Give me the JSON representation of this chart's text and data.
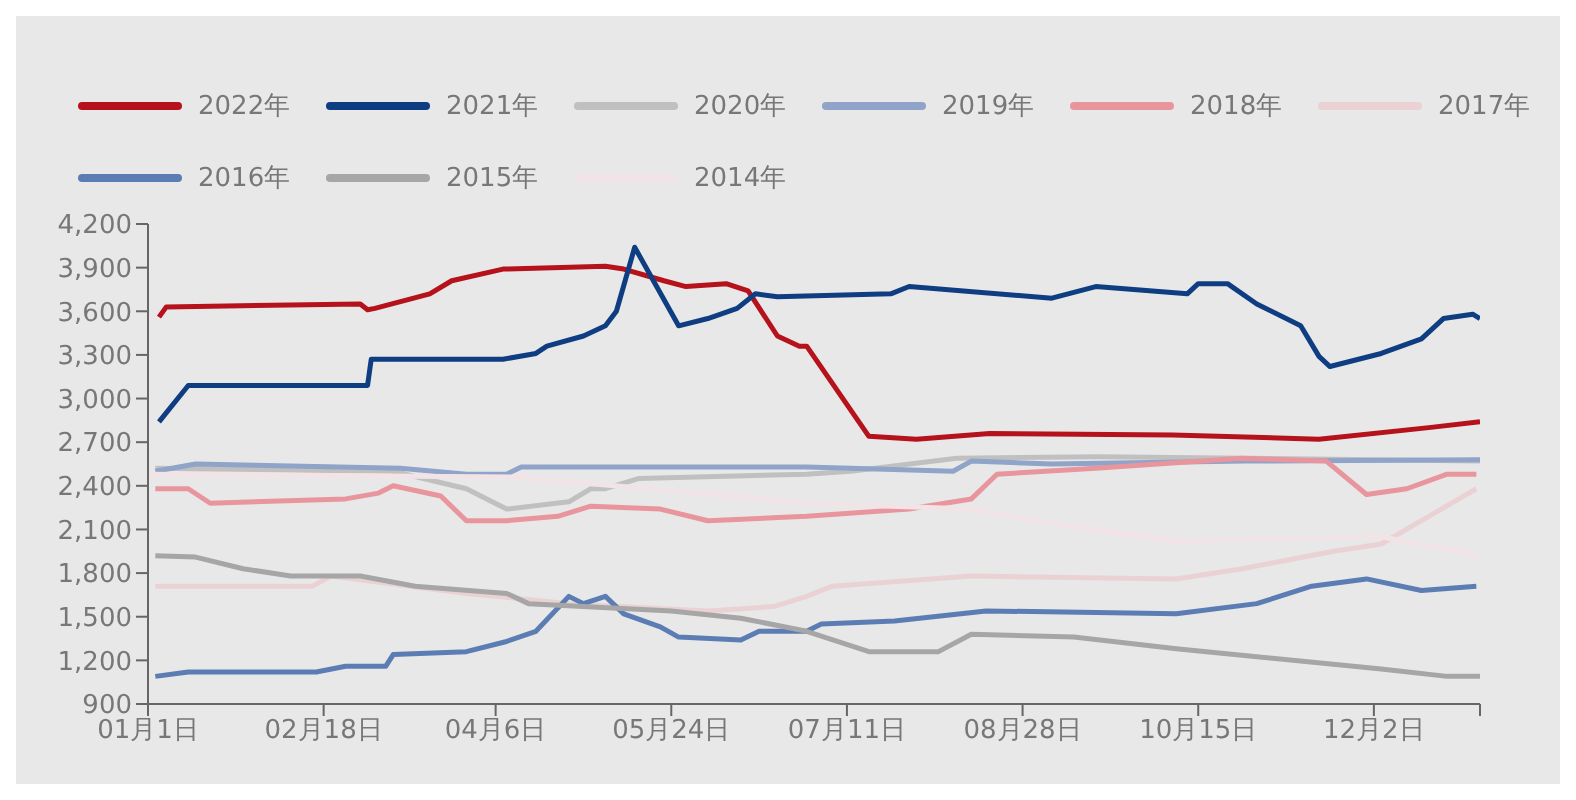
{
  "chart_data": {
    "type": "line",
    "legend": "top",
    "marker": "none",
    "line_style": "solid",
    "grid": false,
    "xlim": [
      "--01-01",
      "--12-31"
    ],
    "xticks": [
      {
        "value": "--01-01",
        "label": "01月1日"
      },
      {
        "value": "--02-18",
        "label": "02月18日"
      },
      {
        "value": "--04-06",
        "label": "04月6日"
      },
      {
        "value": "--05-24",
        "label": "05月24日"
      },
      {
        "value": "--07-11",
        "label": "07月11日"
      },
      {
        "value": "--08-28",
        "label": "08月28日"
      },
      {
        "value": "--10-15",
        "label": "10月15日"
      },
      {
        "value": "--12-02",
        "label": "12月2日"
      },
      {
        "value": "--12-31",
        "label": null
      }
    ],
    "ylim": [
      900,
      4200
    ],
    "yticks": [
      {
        "value": 900,
        "label": "900"
      },
      {
        "value": 1200,
        "label": "1,200"
      },
      {
        "value": 1500,
        "label": "1,500"
      },
      {
        "value": 1800,
        "label": "1,800"
      },
      {
        "value": 2100,
        "label": "2,100"
      },
      {
        "value": 2400,
        "label": "2,400"
      },
      {
        "value": 2700,
        "label": "2,700"
      },
      {
        "value": 3000,
        "label": "3,000"
      },
      {
        "value": 3300,
        "label": "3,300"
      },
      {
        "value": 3600,
        "label": "3,600"
      },
      {
        "value": 3900,
        "label": "3,900"
      },
      {
        "value": 4200,
        "label": "4,200"
      }
    ],
    "series": [
      {
        "name": "2022年",
        "color": "#b5121b",
        "x": [
          "--01-04",
          "--01-06",
          "--02-28",
          "--03-02",
          "--03-04",
          "--03-19",
          "--03-25",
          "--04-08",
          "--05-06",
          "--05-11",
          "--05-22",
          "--05-28",
          "--06-08",
          "--06-14",
          "--06-22",
          "--06-28",
          "--06-30",
          "--07-17",
          "--07-30",
          "--08-19",
          "--10-08",
          "--11-17",
          "--12-17",
          "--12-31"
        ],
        "values": [
          3560,
          3630,
          3650,
          3610,
          3620,
          3720,
          3810,
          3890,
          3910,
          3890,
          3810,
          3770,
          3790,
          3740,
          3430,
          3360,
          3360,
          2740,
          2720,
          2760,
          2750,
          2720,
          2800,
          2840
        ]
      },
      {
        "name": "2021年",
        "color": "#0f3d82",
        "x": [
          "--01-04",
          "--01-12",
          "--03-02",
          "--03-03",
          "--04-08",
          "--04-17",
          "--04-20",
          "--04-30",
          "--05-06",
          "--05-09",
          "--05-14",
          "--05-26",
          "--06-03",
          "--06-11",
          "--06-16",
          "--06-22",
          "--07-23",
          "--07-28",
          "--09-05",
          "--09-17",
          "--10-12",
          "--10-15",
          "--10-23",
          "--10-31",
          "--11-12",
          "--11-17",
          "--11-20",
          "--12-04",
          "--12-15",
          "--12-21",
          "--12-29",
          "--12-31"
        ],
        "values": [
          2840,
          3090,
          3090,
          3270,
          3270,
          3310,
          3360,
          3430,
          3500,
          3600,
          4040,
          3500,
          3550,
          3620,
          3720,
          3700,
          3720,
          3770,
          3690,
          3770,
          3720,
          3790,
          3790,
          3650,
          3500,
          3290,
          3220,
          3310,
          3410,
          3550,
          3580,
          3550
        ]
      },
      {
        "name": "2020年",
        "color": "#c0c0c0",
        "x": [
          "--01-03",
          "--03-09",
          "--03-29",
          "--04-09",
          "--04-26",
          "--05-02",
          "--05-06",
          "--05-15",
          "--06-30",
          "--07-12",
          "--08-10",
          "--09-18",
          "--10-28",
          "--12-31"
        ],
        "values": [
          2520,
          2500,
          2380,
          2240,
          2290,
          2380,
          2380,
          2450,
          2480,
          2500,
          2590,
          2600,
          2590,
          2570
        ]
      },
      {
        "name": "2019年",
        "color": "#8fa4c8",
        "x": [
          "--01-03",
          "--01-14",
          "--03-11",
          "--03-29",
          "--04-09",
          "--04-13",
          "--06-30",
          "--07-12",
          "--08-09",
          "--08-14",
          "--09-05",
          "--10-28",
          "--12-31"
        ],
        "values": [
          2500,
          2550,
          2520,
          2480,
          2480,
          2530,
          2530,
          2520,
          2500,
          2570,
          2550,
          2570,
          2580
        ]
      },
      {
        "name": "2018年",
        "color": "#e8959e",
        "x": [
          "--01-03",
          "--01-12",
          "--01-18",
          "--02-24",
          "--03-05",
          "--03-09",
          "--03-22",
          "--03-29",
          "--04-09",
          "--04-23",
          "--05-02",
          "--05-21",
          "--06-03",
          "--06-30",
          "--07-28",
          "--08-14",
          "--08-21",
          "--09-17",
          "--10-27",
          "--11-19",
          "--11-30",
          "--12-11",
          "--12-22",
          "--12-30"
        ],
        "values": [
          2380,
          2380,
          2280,
          2310,
          2350,
          2400,
          2330,
          2160,
          2160,
          2190,
          2260,
          2240,
          2160,
          2190,
          2240,
          2310,
          2480,
          2520,
          2590,
          2570,
          2340,
          2380,
          2480,
          2480
        ]
      },
      {
        "name": "2017年",
        "color": "#ead2d4",
        "x": [
          "--01-03",
          "--02-15",
          "--02-20",
          "--03-29",
          "--04-26",
          "--06-03",
          "--06-21",
          "--06-30",
          "--07-07",
          "--08-14",
          "--10-09",
          "--10-27",
          "--11-21",
          "--12-04",
          "--12-17",
          "--12-30"
        ],
        "values": [
          1710,
          1710,
          1780,
          1660,
          1590,
          1540,
          1570,
          1640,
          1710,
          1780,
          1760,
          1830,
          1950,
          2000,
          2190,
          2380
        ]
      },
      {
        "name": "2016年",
        "color": "#5b7db3",
        "x": [
          "--01-03",
          "--01-12",
          "--02-16",
          "--02-24",
          "--03-07",
          "--03-09",
          "--03-29",
          "--04-09",
          "--04-17",
          "--04-26",
          "--04-30",
          "--05-06",
          "--05-11",
          "--05-21",
          "--05-26",
          "--06-12",
          "--06-17",
          "--06-30",
          "--07-04",
          "--07-24",
          "--08-18",
          "--10-09",
          "--10-31",
          "--11-15",
          "--11-30",
          "--12-15",
          "--12-30"
        ],
        "values": [
          1090,
          1120,
          1120,
          1160,
          1160,
          1240,
          1260,
          1330,
          1400,
          1640,
          1590,
          1640,
          1520,
          1430,
          1360,
          1340,
          1400,
          1400,
          1450,
          1470,
          1540,
          1520,
          1590,
          1710,
          1760,
          1680,
          1710
        ]
      },
      {
        "name": "2015年",
        "color": "#a6a6a6",
        "x": [
          "--01-03",
          "--01-14",
          "--01-27",
          "--02-09",
          "--02-28",
          "--03-15",
          "--04-09",
          "--04-15",
          "--05-24",
          "--06-12",
          "--06-30",
          "--07-17",
          "--08-05",
          "--08-14",
          "--09-11",
          "--10-09",
          "--12-04",
          "--12-22",
          "--12-31"
        ],
        "values": [
          1920,
          1910,
          1830,
          1780,
          1780,
          1710,
          1660,
          1590,
          1540,
          1490,
          1400,
          1260,
          1260,
          1380,
          1360,
          1280,
          1140,
          1090,
          1090
        ]
      },
      {
        "name": "2014年",
        "color": "#f2e4e6",
        "x": [
          "--01-01",
          "--04-11",
          "--05-31",
          "--06-30",
          "--08-14",
          "--09-11",
          "--10-09",
          "--12-04",
          "--12-31"
        ],
        "values": [
          2480,
          2460,
          2350,
          2280,
          2240,
          2120,
          2020,
          2050,
          1920
        ]
      }
    ]
  }
}
